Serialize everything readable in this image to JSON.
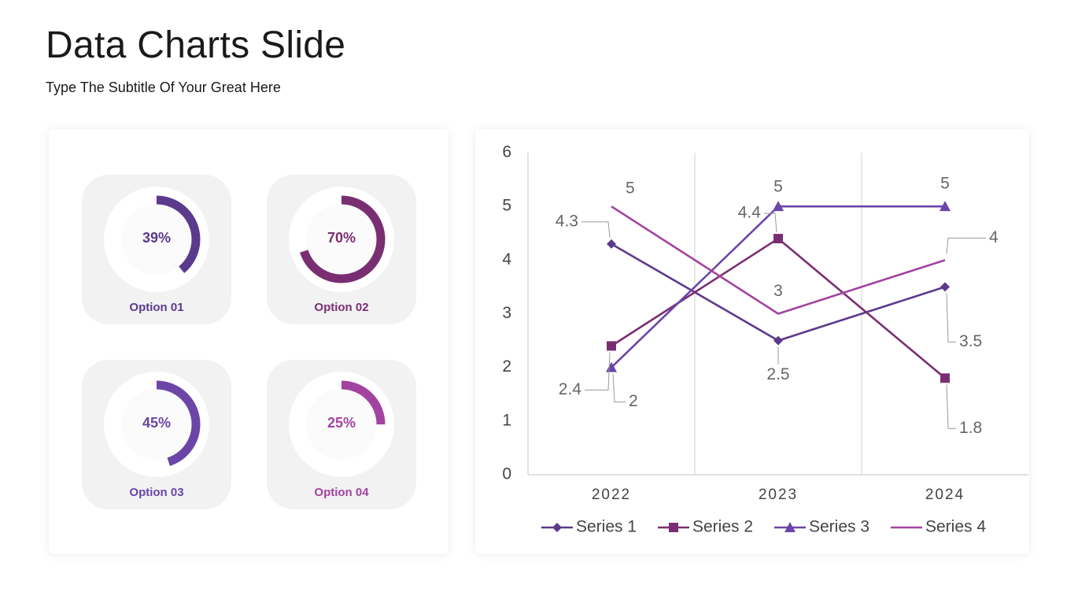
{
  "slide": {
    "title": "Data Charts Slide",
    "subtitle": "Type The Subtitle Of Your Great Here"
  },
  "donuts": [
    {
      "percent": 39,
      "label": "39%",
      "option": "Option 01",
      "color": "#5b3a8c"
    },
    {
      "percent": 70,
      "label": "70%",
      "option": "Option 02",
      "color": "#7a2e72"
    },
    {
      "percent": 45,
      "label": "45%",
      "option": "Option 03",
      "color": "#6b45a8"
    },
    {
      "percent": 25,
      "label": "25%",
      "option": "Option 04",
      "color": "#a343a0"
    }
  ],
  "chart_data": {
    "type": "line",
    "title": "",
    "xlabel": "",
    "ylabel": "",
    "categories": [
      "2022",
      "2023",
      "2024"
    ],
    "ylim": [
      0,
      6
    ],
    "yticks": [
      "0",
      "1",
      "2",
      "3",
      "4",
      "5",
      "6"
    ],
    "grid": "vertical",
    "legend": "bottom",
    "series": [
      {
        "name": "Series 1",
        "values": [
          4.3,
          2.5,
          3.5
        ],
        "labels": [
          "4.3",
          "2.5",
          "3.5"
        ],
        "marker": "diamond",
        "color": "#5b3a8c"
      },
      {
        "name": "Series 2",
        "values": [
          2.4,
          4.4,
          1.8
        ],
        "labels": [
          "2.4",
          "4.4",
          "1.8"
        ],
        "marker": "square",
        "color": "#7a2e72"
      },
      {
        "name": "Series 3",
        "values": [
          2,
          5,
          5
        ],
        "labels": [
          "2",
          "5",
          "5"
        ],
        "marker": "triangle",
        "color": "#6b45a8"
      },
      {
        "name": "Series 4",
        "values": [
          5,
          3,
          4
        ],
        "labels": [
          "5",
          "3",
          "4"
        ],
        "marker": "none",
        "color": "#a343a0"
      }
    ]
  }
}
